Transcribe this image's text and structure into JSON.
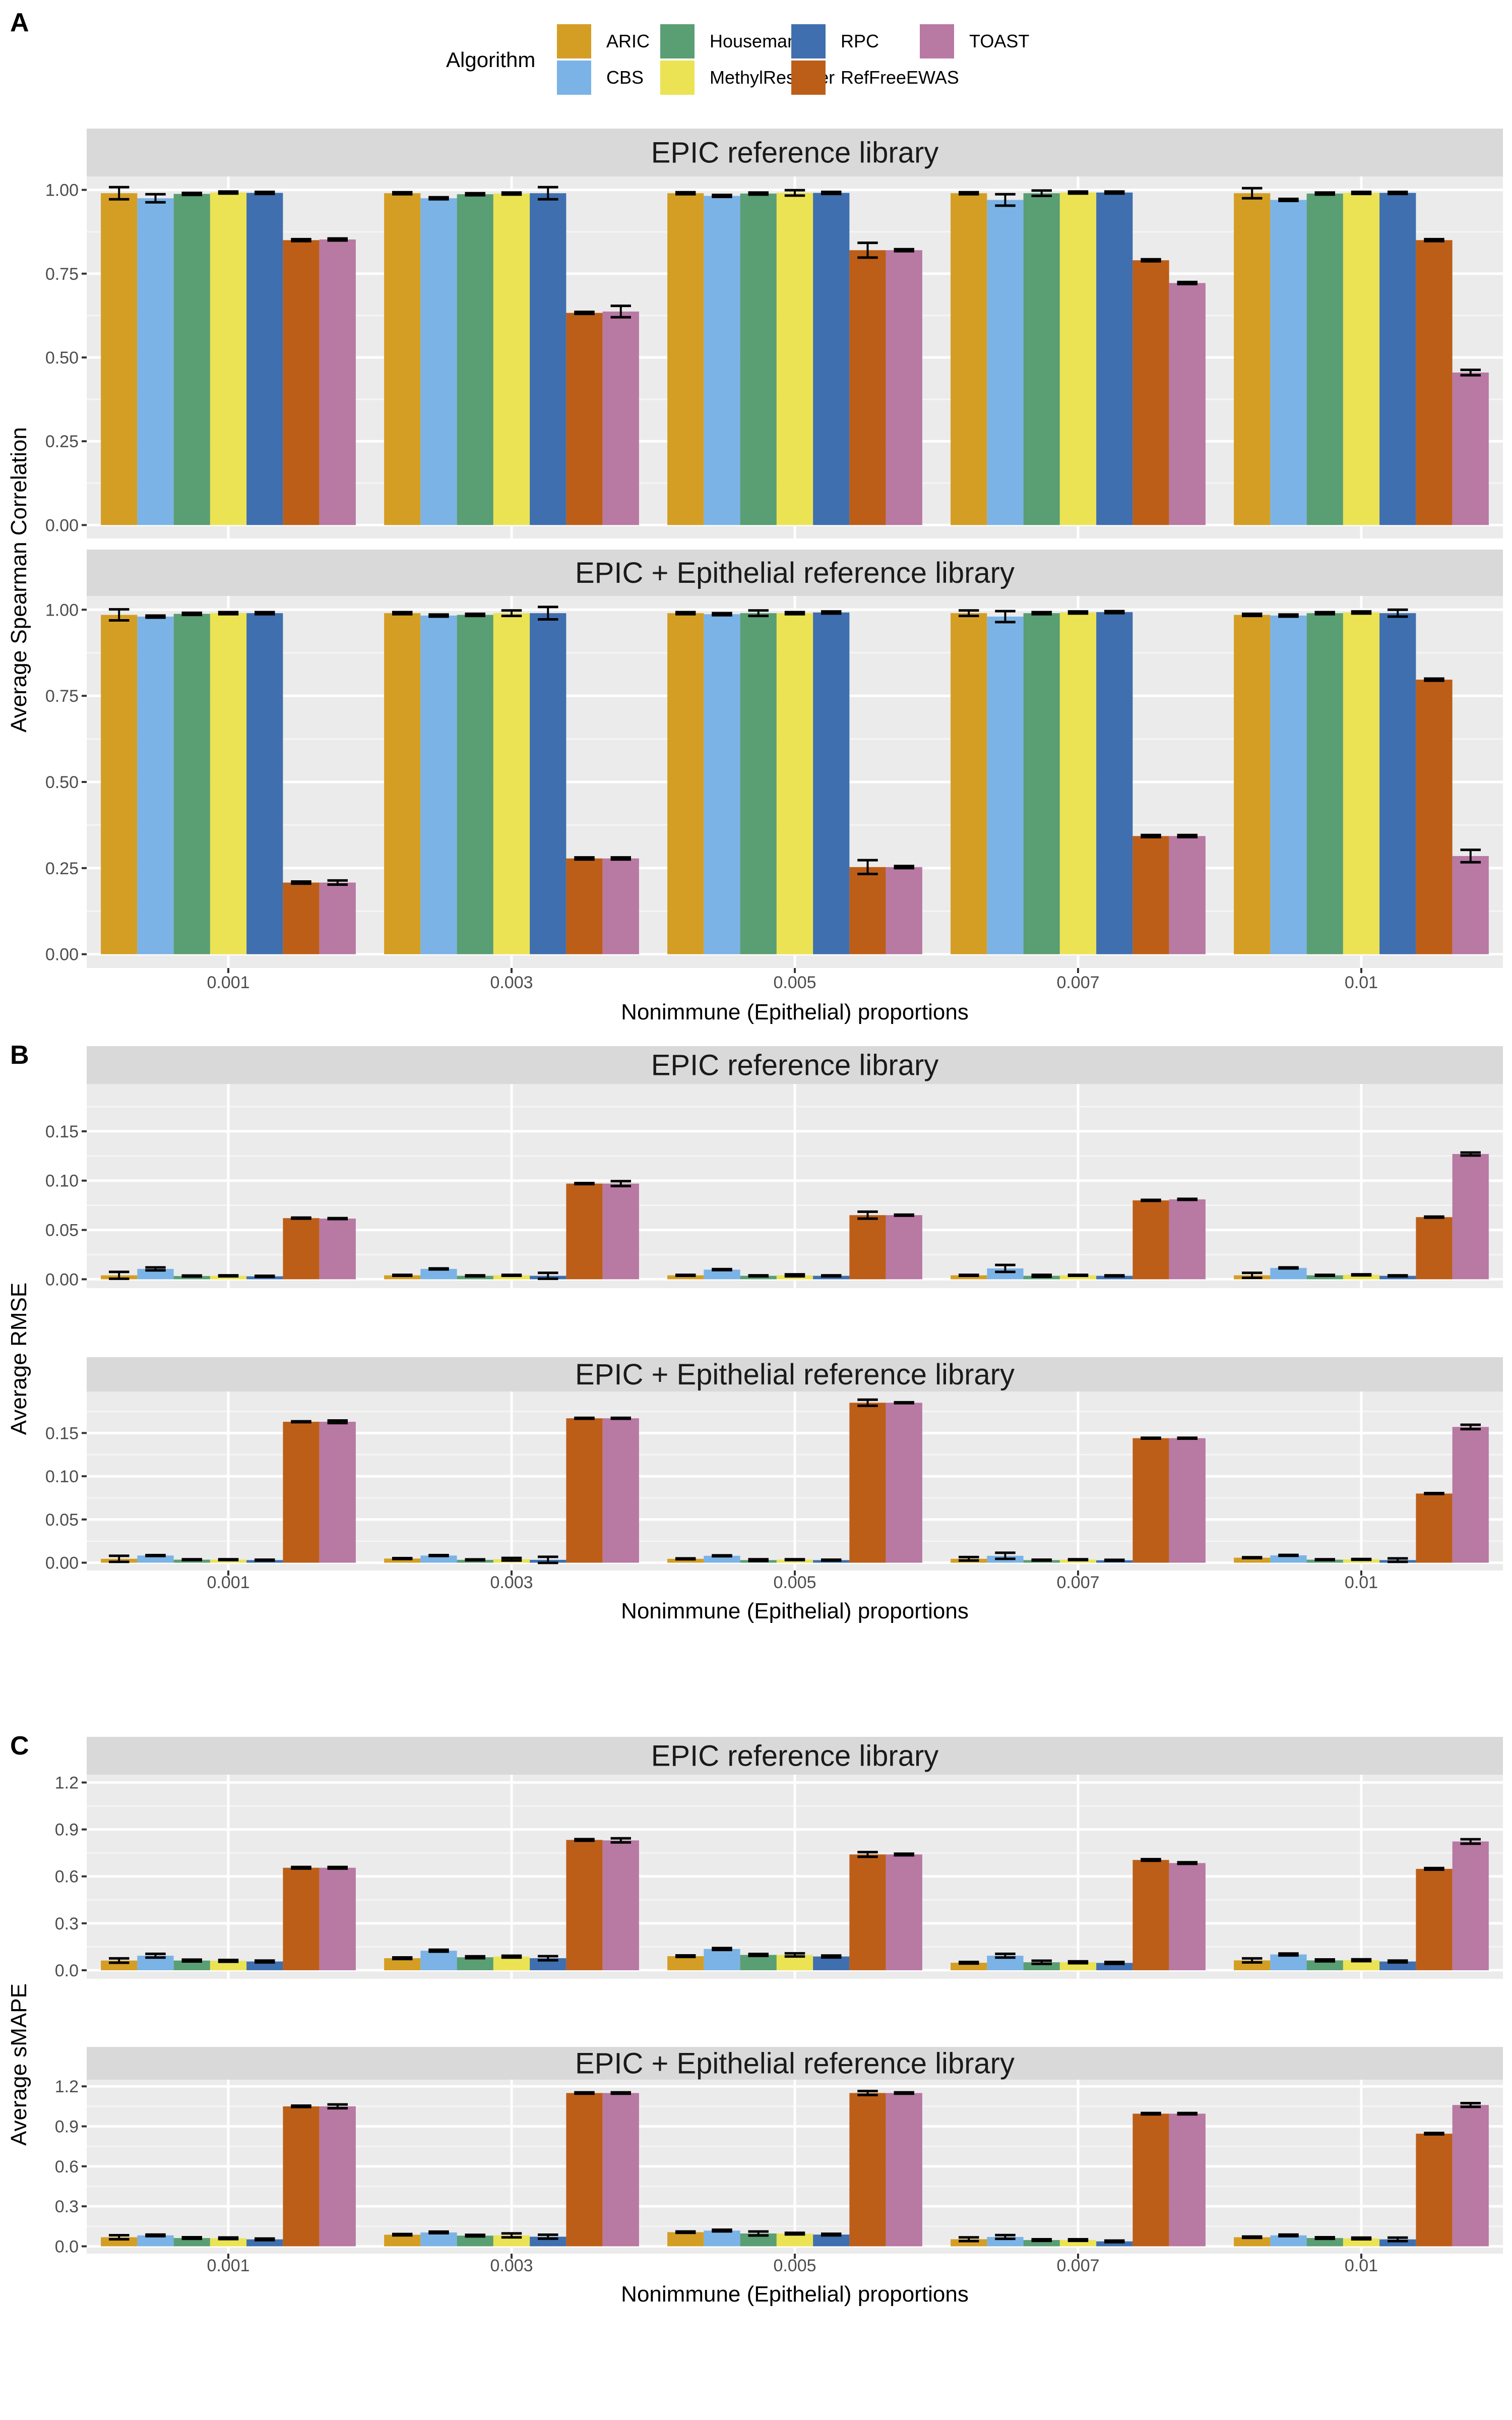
{
  "legend": {
    "title": "Algorithm",
    "items": [
      {
        "name": "ARIC",
        "color": "#D49E24"
      },
      {
        "name": "CBS",
        "color": "#7BB3E6"
      },
      {
        "name": "Houseman",
        "color": "#5A9E73"
      },
      {
        "name": "MethylResolver",
        "color": "#EBE353"
      },
      {
        "name": "RPC",
        "color": "#3F6FAE"
      },
      {
        "name": "RefFreeEWAS",
        "color": "#BC5E18"
      },
      {
        "name": "TOAST",
        "color": "#B879A3"
      }
    ]
  },
  "chart_data": [
    {
      "type": "bar",
      "panel": "A",
      "ylabel": "Average Spearman Correlation",
      "xlabel": "Nonimmune (Epithelial) proportions",
      "categories": [
        "0.001",
        "0.003",
        "0.005",
        "0.007",
        "0.01"
      ],
      "ylim": [
        -0.04,
        1.04
      ],
      "yticks": [
        0,
        0.25,
        0.5,
        0.75,
        1.0
      ],
      "ytick_labels": [
        "0.00",
        "0.25",
        "0.50",
        "0.75",
        "1.00"
      ],
      "facets": [
        {
          "title": "EPIC reference library",
          "series": [
            {
              "name": "ARIC",
              "values": [
                0.99,
                0.99,
                0.99,
                0.99,
                0.99
              ],
              "errors": [
                0.018,
                0.003,
                0.003,
                0.003,
                0.015
              ]
            },
            {
              "name": "CBS",
              "values": [
                0.975,
                0.975,
                0.982,
                0.97,
                0.97
              ],
              "errors": [
                0.012,
                0.003,
                0.003,
                0.017,
                0.003
              ]
            },
            {
              "name": "Houseman",
              "values": [
                0.988,
                0.987,
                0.989,
                0.99,
                0.989
              ],
              "errors": [
                0.003,
                0.003,
                0.003,
                0.008,
                0.003
              ]
            },
            {
              "name": "MethylResolver",
              "values": [
                0.992,
                0.989,
                0.991,
                0.992,
                0.991
              ],
              "errors": [
                0.003,
                0.003,
                0.008,
                0.003,
                0.003
              ]
            },
            {
              "name": "RPC",
              "values": [
                0.991,
                0.99,
                0.991,
                0.992,
                0.991
              ],
              "errors": [
                0.003,
                0.018,
                0.003,
                0.003,
                0.003
              ]
            },
            {
              "name": "RefFreeEWAS",
              "values": [
                0.85,
                0.633,
                0.82,
                0.79,
                0.85
              ],
              "errors": [
                0.003,
                0.003,
                0.022,
                0.003,
                0.003
              ]
            },
            {
              "name": "TOAST",
              "values": [
                0.852,
                0.637,
                0.82,
                0.722,
                0.455
              ],
              "errors": [
                0.003,
                0.017,
                0.003,
                0.003,
                0.008
              ]
            }
          ]
        },
        {
          "title": "EPIC + Epithelial reference library",
          "series": [
            {
              "name": "ARIC",
              "values": [
                0.985,
                0.99,
                0.99,
                0.99,
                0.985
              ],
              "errors": [
                0.016,
                0.003,
                0.003,
                0.008,
                0.003
              ]
            },
            {
              "name": "CBS",
              "values": [
                0.98,
                0.983,
                0.987,
                0.98,
                0.983
              ],
              "errors": [
                0.003,
                0.003,
                0.003,
                0.016,
                0.003
              ]
            },
            {
              "name": "Houseman",
              "values": [
                0.988,
                0.985,
                0.99,
                0.99,
                0.99
              ],
              "errors": [
                0.003,
                0.003,
                0.008,
                0.003,
                0.003
              ]
            },
            {
              "name": "MethylResolver",
              "values": [
                0.99,
                0.99,
                0.99,
                0.992,
                0.992
              ],
              "errors": [
                0.003,
                0.008,
                0.003,
                0.003,
                0.003
              ]
            },
            {
              "name": "RPC",
              "values": [
                0.99,
                0.99,
                0.992,
                0.993,
                0.99
              ],
              "errors": [
                0.003,
                0.018,
                0.003,
                0.003,
                0.01
              ]
            },
            {
              "name": "RefFreeEWAS",
              "values": [
                0.208,
                0.278,
                0.253,
                0.343,
                0.797
              ],
              "errors": [
                0.003,
                0.003,
                0.02,
                0.003,
                0.003
              ]
            },
            {
              "name": "TOAST",
              "values": [
                0.208,
                0.278,
                0.253,
                0.343,
                0.285
              ],
              "errors": [
                0.006,
                0.003,
                0.003,
                0.003,
                0.018
              ]
            }
          ]
        }
      ]
    },
    {
      "type": "bar",
      "panel": "B",
      "ylabel": "Average RMSE",
      "xlabel": "Nonimmune (Epithelial) proportions",
      "categories": [
        "0.001",
        "0.003",
        "0.005",
        "0.007",
        "0.01"
      ],
      "ylim": [
        -0.009,
        0.198
      ],
      "yticks": [
        0,
        0.05,
        0.1,
        0.15
      ],
      "ytick_labels": [
        "0.00",
        "0.05",
        "0.10",
        "0.15"
      ],
      "facets": [
        {
          "title": "EPIC reference library",
          "series": [
            {
              "name": "ARIC",
              "values": [
                0.004,
                0.004,
                0.004,
                0.004,
                0.004
              ],
              "errors": [
                0.0035,
                0.0005,
                0.0005,
                0.0005,
                0.0025
              ]
            },
            {
              "name": "CBS",
              "values": [
                0.0105,
                0.0105,
                0.0098,
                0.011,
                0.0115
              ],
              "errors": [
                0.0015,
                0.0005,
                0.0005,
                0.0035,
                0.0005
              ]
            },
            {
              "name": "Houseman",
              "values": [
                0.0033,
                0.0035,
                0.0035,
                0.0035,
                0.004
              ],
              "errors": [
                0.0005,
                0.0005,
                0.0005,
                0.001,
                0.0005
              ]
            },
            {
              "name": "MethylResolver",
              "values": [
                0.0035,
                0.004,
                0.004,
                0.004,
                0.0045
              ],
              "errors": [
                0.0005,
                0.0005,
                0.001,
                0.0005,
                0.0005
              ]
            },
            {
              "name": "RPC",
              "values": [
                0.003,
                0.0035,
                0.0035,
                0.0035,
                0.0035
              ],
              "errors": [
                0.0005,
                0.003,
                0.0005,
                0.0005,
                0.0005
              ]
            },
            {
              "name": "RefFreeEWAS",
              "values": [
                0.062,
                0.097,
                0.065,
                0.08,
                0.063
              ],
              "errors": [
                0.0005,
                0.0005,
                0.0035,
                0.0005,
                0.0005
              ]
            },
            {
              "name": "TOAST",
              "values": [
                0.0615,
                0.097,
                0.065,
                0.081,
                0.127
              ],
              "errors": [
                0.0005,
                0.0025,
                0.0005,
                0.0005,
                0.0015
              ]
            }
          ]
        },
        {
          "title": "EPIC + Epithelial reference library",
          "series": [
            {
              "name": "ARIC",
              "values": [
                0.0045,
                0.0048,
                0.0045,
                0.0045,
                0.0058
              ],
              "errors": [
                0.0035,
                0.0005,
                0.0005,
                0.002,
                0.0005
              ]
            },
            {
              "name": "CBS",
              "values": [
                0.0083,
                0.0083,
                0.008,
                0.008,
                0.0085
              ],
              "errors": [
                0.0005,
                0.0005,
                0.0005,
                0.0035,
                0.0005
              ]
            },
            {
              "name": "Houseman",
              "values": [
                0.0035,
                0.0033,
                0.003,
                0.003,
                0.0035
              ],
              "errors": [
                0.0005,
                0.0005,
                0.001,
                0.0005,
                0.0005
              ]
            },
            {
              "name": "MethylResolver",
              "values": [
                0.0035,
                0.004,
                0.0035,
                0.0035,
                0.0038
              ],
              "errors": [
                0.0005,
                0.0015,
                0.0005,
                0.0005,
                0.0005
              ]
            },
            {
              "name": "RPC",
              "values": [
                0.003,
                0.0033,
                0.003,
                0.0028,
                0.003
              ],
              "errors": [
                0.0005,
                0.0035,
                0.0005,
                0.0005,
                0.002
              ]
            },
            {
              "name": "RefFreeEWAS",
              "values": [
                0.163,
                0.167,
                0.185,
                0.144,
                0.08
              ],
              "errors": [
                0.0005,
                0.0005,
                0.0035,
                0.0005,
                0.0005
              ]
            },
            {
              "name": "TOAST",
              "values": [
                0.163,
                0.167,
                0.185,
                0.144,
                0.157
              ],
              "errors": [
                0.0015,
                0.0005,
                0.0005,
                0.0005,
                0.0025
              ]
            }
          ]
        }
      ]
    },
    {
      "type": "bar",
      "panel": "C",
      "ylabel": "Average sMAPE",
      "xlabel": "Nonimmune (Epithelial) proportions",
      "categories": [
        "0.001",
        "0.003",
        "0.005",
        "0.007",
        "0.01"
      ],
      "ylim": [
        -0.055,
        1.25
      ],
      "yticks": [
        0,
        0.3,
        0.6,
        0.9,
        1.2
      ],
      "ytick_labels": [
        "0.0",
        "0.3",
        "0.6",
        "0.9",
        "1.2"
      ],
      "facets": [
        {
          "title": "EPIC reference library",
          "series": [
            {
              "name": "ARIC",
              "values": [
                0.062,
                0.077,
                0.09,
                0.048,
                0.063
              ],
              "errors": [
                0.014,
                0.005,
                0.005,
                0.005,
                0.013
              ]
            },
            {
              "name": "CBS",
              "values": [
                0.093,
                0.125,
                0.136,
                0.093,
                0.101
              ],
              "errors": [
                0.012,
                0.006,
                0.006,
                0.012,
                0.006
              ]
            },
            {
              "name": "Houseman",
              "values": [
                0.062,
                0.083,
                0.098,
                0.051,
                0.063
              ],
              "errors": [
                0.006,
                0.006,
                0.006,
                0.01,
                0.006
              ]
            },
            {
              "name": "MethylResolver",
              "values": [
                0.06,
                0.087,
                0.098,
                0.051,
                0.064
              ],
              "errors": [
                0.006,
                0.006,
                0.01,
                0.006,
                0.006
              ]
            },
            {
              "name": "RPC",
              "values": [
                0.056,
                0.077,
                0.088,
                0.047,
                0.056
              ],
              "errors": [
                0.006,
                0.013,
                0.006,
                0.006,
                0.006
              ]
            },
            {
              "name": "RefFreeEWAS",
              "values": [
                0.655,
                0.833,
                0.74,
                0.705,
                0.648
              ],
              "errors": [
                0.005,
                0.005,
                0.015,
                0.005,
                0.005
              ]
            },
            {
              "name": "TOAST",
              "values": [
                0.655,
                0.83,
                0.74,
                0.685,
                0.823
              ],
              "errors": [
                0.005,
                0.013,
                0.005,
                0.005,
                0.014
              ]
            }
          ]
        },
        {
          "title": "EPIC + Epithelial reference library",
          "series": [
            {
              "name": "ARIC",
              "values": [
                0.068,
                0.087,
                0.106,
                0.053,
                0.068
              ],
              "errors": [
                0.015,
                0.005,
                0.005,
                0.014,
                0.005
              ]
            },
            {
              "name": "CBS",
              "values": [
                0.082,
                0.104,
                0.118,
                0.07,
                0.082
              ],
              "errors": [
                0.006,
                0.006,
                0.006,
                0.014,
                0.006
              ]
            },
            {
              "name": "Houseman",
              "values": [
                0.062,
                0.08,
                0.096,
                0.047,
                0.062
              ],
              "errors": [
                0.006,
                0.006,
                0.015,
                0.006,
                0.006
              ]
            },
            {
              "name": "MethylResolver",
              "values": [
                0.06,
                0.082,
                0.095,
                0.047,
                0.059
              ],
              "errors": [
                0.006,
                0.015,
                0.006,
                0.006,
                0.006
              ]
            },
            {
              "name": "RPC",
              "values": [
                0.052,
                0.072,
                0.088,
                0.037,
                0.052
              ],
              "errors": [
                0.006,
                0.015,
                0.006,
                0.006,
                0.013
              ]
            },
            {
              "name": "RefFreeEWAS",
              "values": [
                1.05,
                1.15,
                1.15,
                0.995,
                0.845
              ],
              "errors": [
                0.005,
                0.005,
                0.015,
                0.005,
                0.005
              ]
            },
            {
              "name": "TOAST",
              "values": [
                1.05,
                1.15,
                1.15,
                0.995,
                1.06
              ],
              "errors": [
                0.014,
                0.005,
                0.005,
                0.005,
                0.014
              ]
            }
          ]
        }
      ]
    }
  ]
}
